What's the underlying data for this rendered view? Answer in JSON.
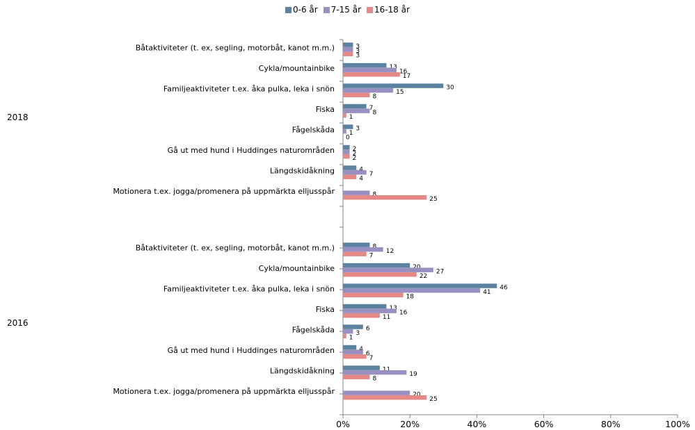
{
  "chart_data": {
    "type": "bar",
    "orientation": "horizontal",
    "title": "",
    "xlabel": "",
    "ylabel": "",
    "xlim": [
      0,
      100
    ],
    "x_ticks": [
      "0%",
      "20%",
      "40%",
      "60%",
      "80%",
      "100%"
    ],
    "legend": {
      "position": "top"
    },
    "grid": false,
    "series": [
      {
        "name": "0-6 år",
        "color": "#5B82A0"
      },
      {
        "name": "7-15 år",
        "color": "#998FC2"
      },
      {
        "name": "16-18 år",
        "color": "#E48985"
      }
    ],
    "groups": [
      {
        "label": "2018",
        "categories": [
          {
            "label": "Båtaktiviteter (t. ex, segling, motorbåt, kanot m.m.)",
            "values": [
              3,
              3,
              3
            ]
          },
          {
            "label": "Cykla/mountainbike",
            "values": [
              13,
              16,
              17
            ]
          },
          {
            "label": "Familjeaktiviteter t.ex. åka pulka, leka i snön",
            "values": [
              30,
              15,
              8
            ]
          },
          {
            "label": "Fiska",
            "values": [
              7,
              8,
              1
            ]
          },
          {
            "label": "Fågelskåda",
            "values": [
              3,
              1,
              0
            ]
          },
          {
            "label": "Gå ut med hund i Huddinges naturområden",
            "values": [
              2,
              2,
              2
            ]
          },
          {
            "label": "Längdskidåkning",
            "values": [
              4,
              7,
              4
            ]
          },
          {
            "label": "Motionera t.ex. jogga/promenera på uppmärkta elljusspår",
            "values": [
              null,
              8,
              25
            ]
          }
        ]
      },
      {
        "label": "2016",
        "categories": [
          {
            "label": "Båtaktiviteter (t. ex, segling, motorbåt, kanot m.m.)",
            "values": [
              8,
              12,
              7
            ]
          },
          {
            "label": "Cykla/mountainbike",
            "values": [
              20,
              27,
              22
            ]
          },
          {
            "label": "Familjeaktiviteter t.ex. åka pulka, leka i snön",
            "values": [
              46,
              41,
              18
            ]
          },
          {
            "label": "Fiska",
            "values": [
              13,
              16,
              11
            ]
          },
          {
            "label": "Fågelskåda",
            "values": [
              6,
              3,
              1
            ]
          },
          {
            "label": "Gå ut med hund i Huddinges naturområden",
            "values": [
              4,
              6,
              7
            ]
          },
          {
            "label": "Längdskidåkning",
            "values": [
              11,
              19,
              8
            ]
          },
          {
            "label": "Motionera t.ex. jogga/promenera på uppmärkta elljusspår",
            "values": [
              null,
              20,
              25
            ]
          }
        ]
      }
    ]
  }
}
